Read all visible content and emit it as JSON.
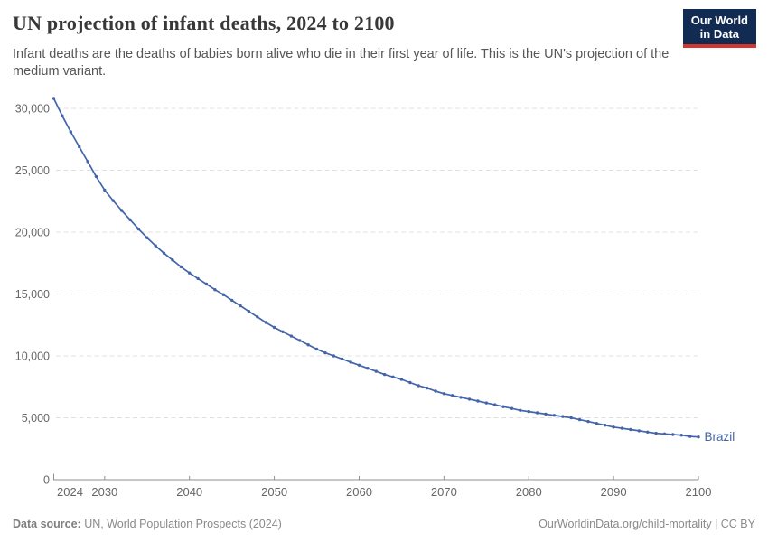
{
  "header": {
    "title": "UN projection of infant deaths, 2024 to 2100",
    "subtitle": "Infant deaths are the deaths of babies born alive who die in their first year of life. This is the UN's projection of the medium variant.",
    "logo_line1": "Our World",
    "logo_line2": "in Data"
  },
  "footer": {
    "source_label": "Data source:",
    "source_text": " UN, World Population Prospects (2024)",
    "right_text": "OurWorldinData.org/child-mortality | CC BY"
  },
  "colors": {
    "line": "#4365a8",
    "grid": "#e0e0e0",
    "axis": "#8f8f8f",
    "tick_label": "#666666",
    "logo_bg": "#122b52",
    "logo_red": "#d2372e"
  },
  "chart_data": {
    "type": "line",
    "title": "UN projection of infant deaths, 2024 to 2100",
    "xlabel": "",
    "ylabel": "",
    "xlim": [
      2024,
      2100
    ],
    "ylim": [
      0,
      31500
    ],
    "grid": "horizontal-dashed",
    "legend_position": "end-of-line-label",
    "xticks": [
      2024,
      2030,
      2040,
      2050,
      2060,
      2070,
      2080,
      2090,
      2100
    ],
    "yticks": {
      "values": [
        0,
        5000,
        10000,
        15000,
        20000,
        25000,
        30000
      ],
      "labels": [
        "0",
        "5,000",
        "10,000",
        "15,000",
        "20,000",
        "25,000",
        "30,000"
      ]
    },
    "series": [
      {
        "name": "Brazil",
        "color": "#4365a8",
        "years": [
          2024,
          2025,
          2026,
          2027,
          2028,
          2029,
          2030,
          2031,
          2032,
          2033,
          2034,
          2035,
          2036,
          2037,
          2038,
          2039,
          2040,
          2041,
          2042,
          2043,
          2044,
          2045,
          2046,
          2047,
          2048,
          2049,
          2050,
          2051,
          2052,
          2053,
          2054,
          2055,
          2056,
          2057,
          2058,
          2059,
          2060,
          2061,
          2062,
          2063,
          2064,
          2065,
          2066,
          2067,
          2068,
          2069,
          2070,
          2071,
          2072,
          2073,
          2074,
          2075,
          2076,
          2077,
          2078,
          2079,
          2080,
          2081,
          2082,
          2083,
          2084,
          2085,
          2086,
          2087,
          2088,
          2089,
          2090,
          2091,
          2092,
          2093,
          2094,
          2095,
          2096,
          2097,
          2098,
          2099,
          2100
        ],
        "values": [
          30800,
          29400,
          28100,
          26900,
          25700,
          24500,
          23400,
          22550,
          21750,
          21000,
          20250,
          19550,
          18900,
          18300,
          17750,
          17200,
          16700,
          16250,
          15800,
          15350,
          14950,
          14500,
          14050,
          13600,
          13150,
          12700,
          12300,
          11950,
          11600,
          11250,
          10900,
          10550,
          10250,
          10000,
          9750,
          9500,
          9250,
          9000,
          8750,
          8500,
          8300,
          8100,
          7850,
          7600,
          7400,
          7150,
          6950,
          6800,
          6650,
          6500,
          6350,
          6200,
          6050,
          5900,
          5750,
          5600,
          5500,
          5400,
          5300,
          5200,
          5100,
          5000,
          4850,
          4700,
          4550,
          4400,
          4250,
          4150,
          4050,
          3950,
          3850,
          3750,
          3700,
          3650,
          3600,
          3500,
          3450
        ]
      }
    ]
  }
}
